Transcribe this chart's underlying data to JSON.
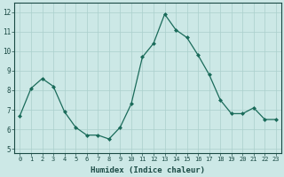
{
  "x": [
    0,
    1,
    2,
    3,
    4,
    5,
    6,
    7,
    8,
    9,
    10,
    11,
    12,
    13,
    14,
    15,
    16,
    17,
    18,
    19,
    20,
    21,
    22,
    23
  ],
  "y": [
    6.7,
    8.1,
    8.6,
    8.2,
    6.9,
    6.1,
    5.7,
    5.7,
    5.5,
    6.1,
    7.3,
    9.7,
    10.4,
    11.9,
    11.1,
    10.7,
    9.8,
    8.8,
    7.5,
    6.8,
    6.8,
    7.1,
    6.5,
    6.5
  ],
  "xlabel": "Humidex (Indice chaleur)",
  "ylim": [
    4.8,
    12.5
  ],
  "xlim": [
    -0.5,
    23.5
  ],
  "yticks": [
    5,
    6,
    7,
    8,
    9,
    10,
    11,
    12
  ],
  "xticks": [
    0,
    1,
    2,
    3,
    4,
    5,
    6,
    7,
    8,
    9,
    10,
    11,
    12,
    13,
    14,
    15,
    16,
    17,
    18,
    19,
    20,
    21,
    22,
    23
  ],
  "line_color": "#1a6b5a",
  "marker_color": "#1a6b5a",
  "bg_color": "#cce8e6",
  "grid_color": "#aacfcc",
  "axes_bg": "#cce8e6",
  "tick_color": "#1a4a44",
  "xlabel_color": "#1a4a44",
  "tick_fontsize": 5.0,
  "xlabel_fontsize": 6.5
}
